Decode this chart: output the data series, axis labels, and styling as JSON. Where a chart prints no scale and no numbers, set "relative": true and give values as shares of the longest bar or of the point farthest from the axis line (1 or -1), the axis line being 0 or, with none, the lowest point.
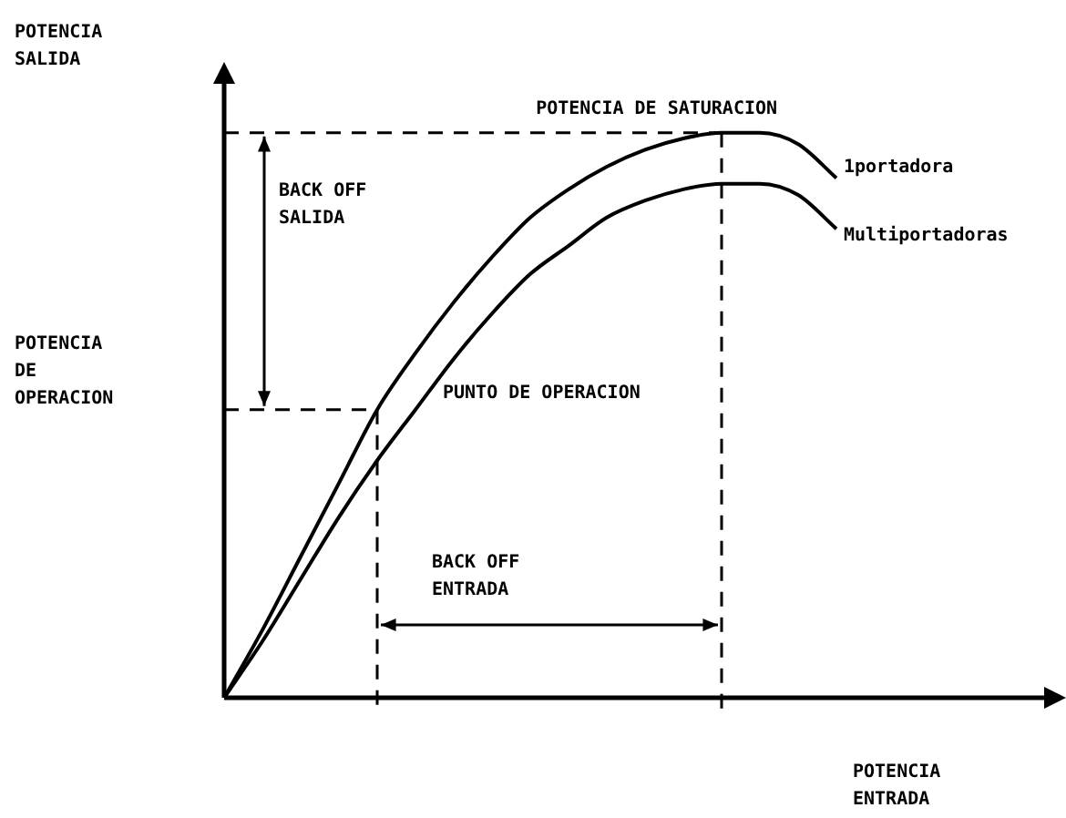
{
  "chart_data": {
    "type": "line",
    "relative": true,
    "xlabel": "POTENCIA ENTRADA",
    "categories": [
      null,
      null,
      null,
      null,
      null,
      null,
      null,
      null,
      null,
      null,
      null,
      null,
      null,
      null,
      null,
      null,
      null
    ],
    "series": [
      {
        "name": "1portadora",
        "color": "#000000",
        "values": [
          0,
          0.12,
          0.25,
          0.38,
          0.51,
          0.61,
          0.7,
          0.78,
          0.85,
          0.9,
          0.94,
          0.97,
          0.99,
          1.0,
          1.0,
          0.98,
          0.92
        ]
      },
      {
        "name": "Multiportadoras",
        "color": "#000000",
        "values": [
          0,
          0.1,
          0.21,
          0.32,
          0.42,
          0.51,
          0.6,
          0.68,
          0.75,
          0.8,
          0.85,
          0.88,
          0.9,
          0.91,
          0.91,
          0.89,
          0.83
        ]
      }
    ],
    "ref_lines": [
      {
        "axis": "y",
        "value": 1,
        "label": "POTENCIA DE SATURACION",
        "line_style": "dashed",
        "color": "#000000"
      },
      {
        "axis": "y",
        "value": 0.51,
        "line_style": "dashed",
        "color": "#000000"
      }
    ],
    "annotations": [
      "BACK OFF SALIDA",
      "BACK OFF ENTRADA",
      "PUNTO DE OPERACION",
      "POTENCIA DE OPERACION",
      "POTENCIA SALIDA"
    ],
    "legend": false,
    "marker": "none",
    "line_style": "solid"
  }
}
